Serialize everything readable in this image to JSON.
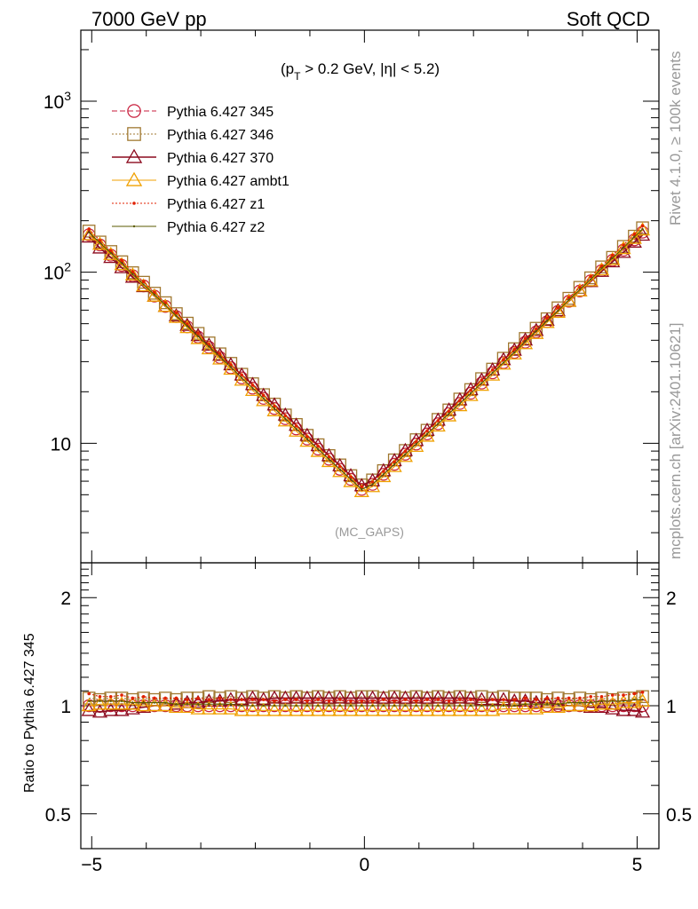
{
  "header": {
    "left": "7000 GeV pp",
    "right": "Soft QCD"
  },
  "annotations": {
    "cuts_pt": "(p",
    "cuts_sub": "T",
    "cuts_rest": " > 0.2 GeV, |η| < 5.2)",
    "analysis": "(MC_GAPS)",
    "rivet": "Rivet 4.1.0, ≥ 100k events",
    "mcplots": "mcplots.cern.ch [arXiv:2401.10621]"
  },
  "main_yticks": [
    {
      "value": 1000,
      "base": "10",
      "exp": "3"
    },
    {
      "value": 100,
      "base": "10",
      "exp": "2"
    },
    {
      "value": 10,
      "base": "10",
      "exp": ""
    }
  ],
  "ratio_yticks": [
    {
      "value": 2,
      "label": "2"
    },
    {
      "value": 1,
      "label": "1"
    },
    {
      "value": 0.5,
      "label": "0.5"
    }
  ],
  "xticks": [
    {
      "value": -5,
      "label": "−5"
    },
    {
      "value": 0,
      "label": "0"
    },
    {
      "value": 5,
      "label": "5"
    }
  ],
  "ratio_ylabel": "Ratio to Pythia 6.427 345",
  "chart_data": {
    "type": "line",
    "title": "7000 GeV pp  Soft QCD",
    "xlabel": "",
    "ylabel": "",
    "xlim": [
      -5.2,
      5.4
    ],
    "ylim": [
      2.0,
      2600
    ],
    "yscale": "log",
    "ratio_ylim": [
      0.4,
      2.5
    ],
    "x_bin_centers": [
      -5.05,
      -4.85,
      -4.65,
      -4.45,
      -4.25,
      -4.05,
      -3.85,
      -3.65,
      -3.45,
      -3.25,
      -3.05,
      -2.85,
      -2.65,
      -2.45,
      -2.25,
      -2.05,
      -1.85,
      -1.65,
      -1.45,
      -1.25,
      -1.05,
      -0.85,
      -0.65,
      -0.45,
      -0.25,
      -0.05,
      0.15,
      0.35,
      0.55,
      0.75,
      0.95,
      1.15,
      1.35,
      1.55,
      1.75,
      1.95,
      2.15,
      2.35,
      2.55,
      2.75,
      2.95,
      3.15,
      3.35,
      3.55,
      3.75,
      3.95,
      4.15,
      4.35,
      4.55,
      4.75,
      4.95,
      5.1
    ],
    "reference_shape": {
      "y_at_zero": 5.1,
      "y_at_5": 160,
      "note": "approx. exponential rise in |x|, symmetric"
    },
    "series": [
      {
        "name": "Pythia 6.427 345",
        "color": "#c81e3c",
        "line": "dashed",
        "marker": "circle-open",
        "ratio": [
          1.0,
          1.0,
          1.0,
          1.0,
          1.0,
          1.0,
          1.0,
          1.0,
          1.0,
          1.0,
          1.0,
          1.0,
          1.0,
          1.0,
          1.0,
          1.0,
          1.0,
          1.0,
          1.0,
          1.0,
          1.0,
          1.0,
          1.0,
          1.0,
          1.0,
          1.0,
          1.0,
          1.0,
          1.0,
          1.0,
          1.0,
          1.0,
          1.0,
          1.0,
          1.0,
          1.0,
          1.0,
          1.0,
          1.0,
          1.0,
          1.0,
          1.0,
          1.0,
          1.0,
          1.0,
          1.0,
          1.0,
          1.0,
          1.0,
          1.0,
          1.0,
          1.0
        ]
      },
      {
        "name": "Pythia 6.427 346",
        "color": "#a07830",
        "line": "dotted",
        "marker": "square-open",
        "ratio": [
          1.05,
          1.04,
          1.05,
          1.05,
          1.04,
          1.05,
          1.04,
          1.05,
          1.04,
          1.05,
          1.05,
          1.06,
          1.05,
          1.06,
          1.05,
          1.06,
          1.05,
          1.06,
          1.05,
          1.06,
          1.05,
          1.06,
          1.05,
          1.06,
          1.05,
          1.06,
          1.06,
          1.05,
          1.06,
          1.05,
          1.06,
          1.05,
          1.06,
          1.05,
          1.06,
          1.05,
          1.06,
          1.05,
          1.06,
          1.05,
          1.05,
          1.05,
          1.04,
          1.05,
          1.04,
          1.05,
          1.04,
          1.05,
          1.04,
          1.05,
          1.05,
          1.06
        ]
      },
      {
        "name": "Pythia 6.427 370",
        "color": "#8c0a1e",
        "line": "solid",
        "marker": "triangle-open",
        "ratio": [
          0.97,
          0.96,
          0.97,
          0.97,
          0.98,
          0.99,
          1.0,
          1.0,
          1.01,
          1.02,
          1.02,
          1.03,
          1.03,
          1.04,
          1.04,
          1.05,
          1.04,
          1.05,
          1.05,
          1.05,
          1.05,
          1.05,
          1.05,
          1.05,
          1.05,
          1.05,
          1.05,
          1.05,
          1.05,
          1.05,
          1.05,
          1.05,
          1.05,
          1.05,
          1.05,
          1.05,
          1.04,
          1.04,
          1.04,
          1.03,
          1.03,
          1.02,
          1.02,
          1.01,
          1.0,
          1.0,
          0.99,
          0.99,
          0.98,
          0.97,
          0.97,
          0.96
        ]
      },
      {
        "name": "Pythia 6.427 ambt1",
        "color": "#f0a000",
        "line": "solid",
        "marker": "triangle-open",
        "ratio": [
          1.0,
          1.01,
          1.01,
          1.01,
          1.01,
          1.0,
          1.0,
          1.0,
          0.99,
          0.99,
          0.98,
          0.98,
          0.98,
          0.98,
          0.97,
          0.97,
          0.97,
          0.97,
          0.97,
          0.97,
          0.97,
          0.97,
          0.97,
          0.97,
          0.97,
          0.97,
          0.97,
          0.97,
          0.97,
          0.97,
          0.97,
          0.97,
          0.97,
          0.97,
          0.97,
          0.97,
          0.97,
          0.97,
          0.98,
          0.98,
          0.98,
          0.98,
          0.99,
          0.99,
          1.0,
          1.0,
          1.0,
          1.01,
          1.01,
          1.02,
          1.02,
          1.03
        ]
      },
      {
        "name": "Pythia 6.427 z1",
        "color": "#e02000",
        "line": "dotted",
        "marker": "dot",
        "ratio": [
          1.08,
          1.06,
          1.06,
          1.07,
          1.05,
          1.06,
          1.05,
          1.05,
          1.05,
          1.04,
          1.05,
          1.04,
          1.05,
          1.04,
          1.04,
          1.04,
          1.04,
          1.03,
          1.04,
          1.04,
          1.03,
          1.04,
          1.03,
          1.04,
          1.03,
          1.03,
          1.03,
          1.04,
          1.03,
          1.04,
          1.03,
          1.04,
          1.04,
          1.03,
          1.04,
          1.04,
          1.04,
          1.04,
          1.04,
          1.04,
          1.05,
          1.04,
          1.05,
          1.05,
          1.05,
          1.05,
          1.06,
          1.06,
          1.07,
          1.07,
          1.08,
          1.09
        ]
      },
      {
        "name": "Pythia 6.427 z2",
        "color": "#5a5a00",
        "line": "solid",
        "marker": "dot-small",
        "ratio": [
          1.03,
          1.03,
          1.03,
          1.03,
          1.02,
          1.02,
          1.02,
          1.02,
          1.01,
          1.01,
          1.01,
          1.01,
          1.01,
          1.01,
          1.0,
          1.0,
          1.0,
          1.0,
          1.0,
          1.0,
          1.0,
          1.0,
          1.0,
          1.0,
          1.0,
          1.0,
          1.0,
          1.0,
          1.0,
          1.0,
          1.0,
          1.0,
          1.0,
          1.0,
          1.0,
          1.0,
          1.0,
          1.0,
          1.0,
          1.0,
          1.01,
          1.01,
          1.01,
          1.01,
          1.02,
          1.02,
          1.02,
          1.03,
          1.03,
          1.03,
          1.04,
          1.04
        ]
      }
    ],
    "legend_position": "top-left"
  }
}
